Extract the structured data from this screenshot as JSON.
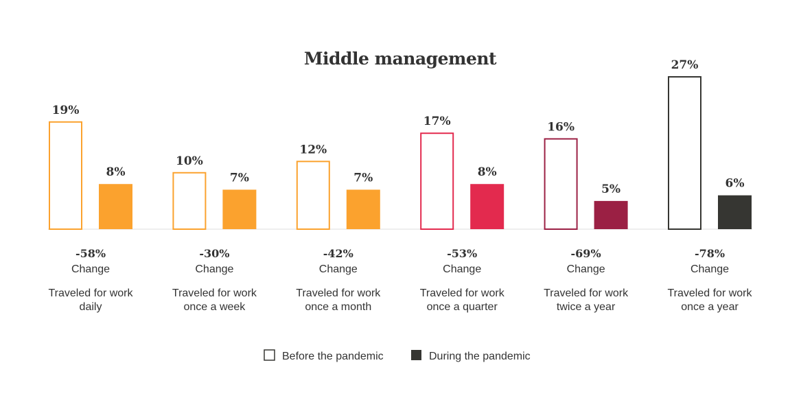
{
  "chart_data": {
    "type": "bar",
    "title": "Middle management",
    "categories": [
      "Traveled for work daily",
      "Traveled for work once a week",
      "Traveled for work once a month",
      "Traveled for work once a quarter",
      "Traveled for work twice a year",
      "Traveled for work once a year"
    ],
    "series": [
      {
        "name": "Before the pandemic",
        "values": [
          19,
          10,
          12,
          17,
          16,
          27
        ],
        "labels": [
          "19%",
          "10%",
          "12%",
          "17%",
          "16%",
          "27%"
        ]
      },
      {
        "name": "During the pandemic",
        "values": [
          8,
          7,
          7,
          8,
          5,
          6
        ],
        "labels": [
          "8%",
          "7%",
          "7%",
          "8%",
          "5%",
          "6%"
        ]
      }
    ],
    "changes": [
      "-58%",
      "-30%",
      "-42%",
      "-53%",
      "-69%",
      "-78%"
    ],
    "change_label": "Change",
    "category_colors": [
      "#FBA22E",
      "#FBA22E",
      "#FBA22E",
      "#E32A4E",
      "#9B2044",
      "#363632"
    ],
    "legend_position": "bottom",
    "ylim": [
      0,
      27
    ],
    "grid": false
  },
  "legend": {
    "before_label": "Before the pandemic",
    "during_label": "During the pandemic",
    "before_color": "#ffffff",
    "during_color": "#363632"
  }
}
